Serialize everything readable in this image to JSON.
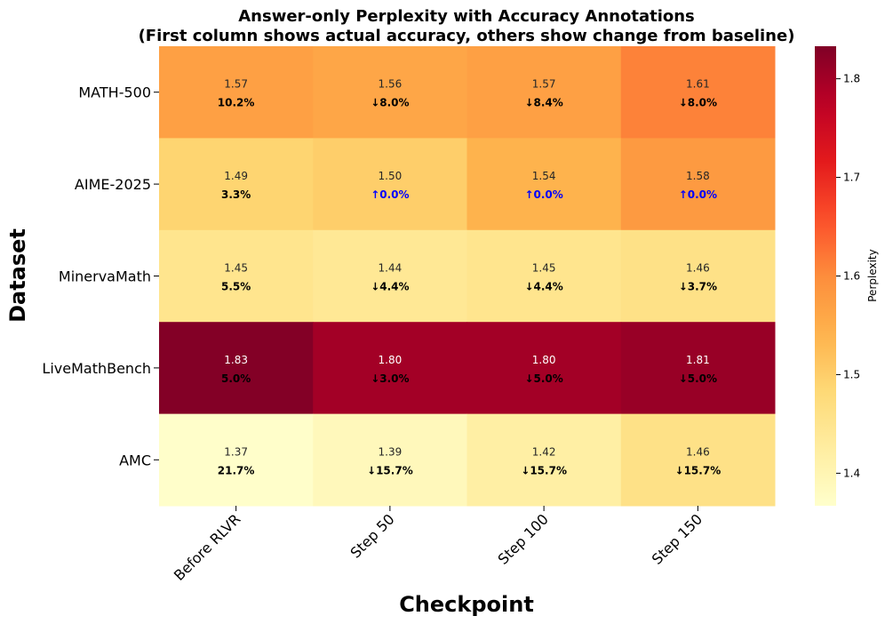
{
  "chart_data": {
    "type": "heatmap",
    "title_line1": "Answer-only Perplexity with Accuracy Annotations",
    "title_line2": "(First column shows actual accuracy, others show change from baseline)",
    "xlabel": "Checkpoint",
    "ylabel": "Dataset",
    "x_categories": [
      "Before RLVR",
      "Step 50",
      "Step 100",
      "Step 150"
    ],
    "y_categories": [
      "MATH-500",
      "AIME-2025",
      "MinervaMath",
      "LiveMathBench",
      "AMC"
    ],
    "perplexity": [
      [
        1.57,
        1.56,
        1.57,
        1.61
      ],
      [
        1.49,
        1.5,
        1.54,
        1.58
      ],
      [
        1.45,
        1.44,
        1.45,
        1.46
      ],
      [
        1.83,
        1.8,
        1.8,
        1.81
      ],
      [
        1.37,
        1.39,
        1.42,
        1.46
      ]
    ],
    "perplexity_labels": [
      [
        "1.57",
        "1.56",
        "1.57",
        "1.61"
      ],
      [
        "1.49",
        "1.50",
        "1.54",
        "1.58"
      ],
      [
        "1.45",
        "1.44",
        "1.45",
        "1.46"
      ],
      [
        "1.83",
        "1.80",
        "1.80",
        "1.81"
      ],
      [
        "1.37",
        "1.39",
        "1.42",
        "1.46"
      ]
    ],
    "accuracy_labels": [
      [
        "10.2%",
        "↓8.0%",
        "↓8.4%",
        "↓8.0%"
      ],
      [
        "3.3%",
        "↑0.0%",
        "↑0.0%",
        "↑0.0%"
      ],
      [
        "5.5%",
        "↓4.4%",
        "↓4.4%",
        "↓3.7%"
      ],
      [
        "5.0%",
        "↓3.0%",
        "↓5.0%",
        "↓5.0%"
      ],
      [
        "21.7%",
        "↓15.7%",
        "↓15.7%",
        "↓15.7%"
      ]
    ],
    "colorbar": {
      "label": "Perplexity",
      "vmin": 1.367,
      "vmax": 1.833,
      "ticks": [
        "1.4",
        "1.5",
        "1.6",
        "1.7",
        "1.8"
      ],
      "colormap": "YlOrRd"
    },
    "colors": {
      "increase_annotation": "#0000ff",
      "default_annotation": "#000000"
    }
  }
}
